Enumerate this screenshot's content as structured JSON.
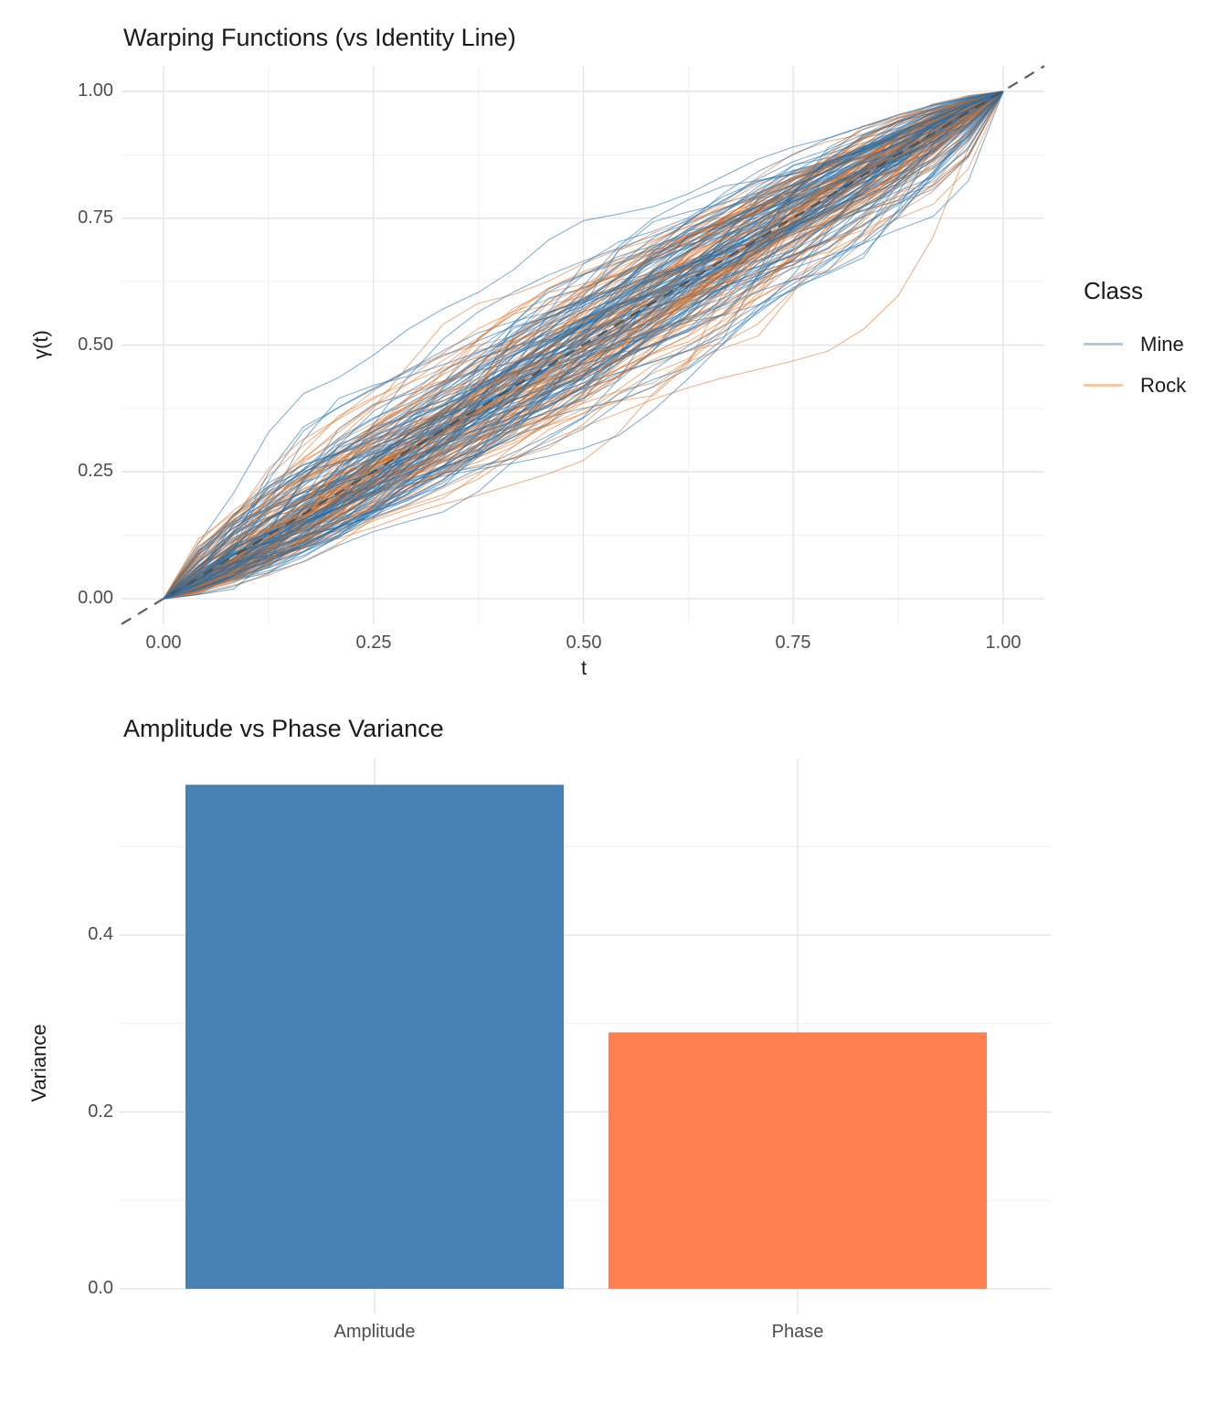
{
  "chart_data": [
    {
      "type": "line",
      "title": "Warping Functions (vs Identity Line)",
      "xlabel": "t",
      "ylabel": "γ(t)",
      "x_ticks": {
        "values": [
          0,
          0.25,
          0.5,
          0.75,
          1
        ],
        "labels": [
          "0.00",
          "0.25",
          "0.50",
          "0.75",
          "1.00"
        ]
      },
      "y_ticks": {
        "values": [
          0,
          0.25,
          0.5,
          0.75,
          1
        ],
        "labels": [
          "0.00",
          "0.25",
          "0.50",
          "0.75",
          "1.00"
        ]
      },
      "xlim": [
        -0.05,
        1.05
      ],
      "ylim": [
        -0.05,
        1.05
      ],
      "grid": {
        "on": true,
        "major_step": 0.25,
        "minor_step": 0.125
      },
      "identity_line": {
        "from": [
          0,
          0
        ],
        "to": [
          1,
          1
        ],
        "style": "dashed",
        "color": "#4d4d4d"
      },
      "legend": {
        "title": "Class",
        "position": "right",
        "entries": [
          {
            "label": "Mine",
            "stroke": "rgba(28,110,172,0.52)",
            "key_color": "#a9cbe2",
            "n_curves": 111
          },
          {
            "label": "Rock",
            "stroke": "rgba(221,112,36,0.5)",
            "key_color": "#f2c9a4",
            "n_curves": 97
          }
        ]
      },
      "curves": {
        "seed": 11,
        "points_per_curve": 24,
        "spread_sigma": 0.7,
        "description": "Bundle of monotone time-warping functions γ(t), one per signal, each increasing from (0,0) to (1,1), shown against the dashed identity line; Mine curves in semi-transparent blue, Rock curves in semi-transparent orange."
      }
    },
    {
      "type": "bar",
      "title": "Amplitude vs Phase Variance",
      "categories": [
        "Amplitude",
        "Phase"
      ],
      "values": [
        0.57,
        0.29
      ],
      "bar_colors": [
        "#4682B4",
        "#FF7F50"
      ],
      "xlabel": "",
      "ylabel": "Variance",
      "y_ticks": {
        "values": [
          0,
          0.2,
          0.4
        ],
        "labels": [
          "0.0",
          "0.2",
          "0.4"
        ]
      },
      "ylim": [
        0,
        0.6
      ],
      "grid": {
        "on": true,
        "major_step": 0.2,
        "minor_step": 0.1
      }
    }
  ]
}
